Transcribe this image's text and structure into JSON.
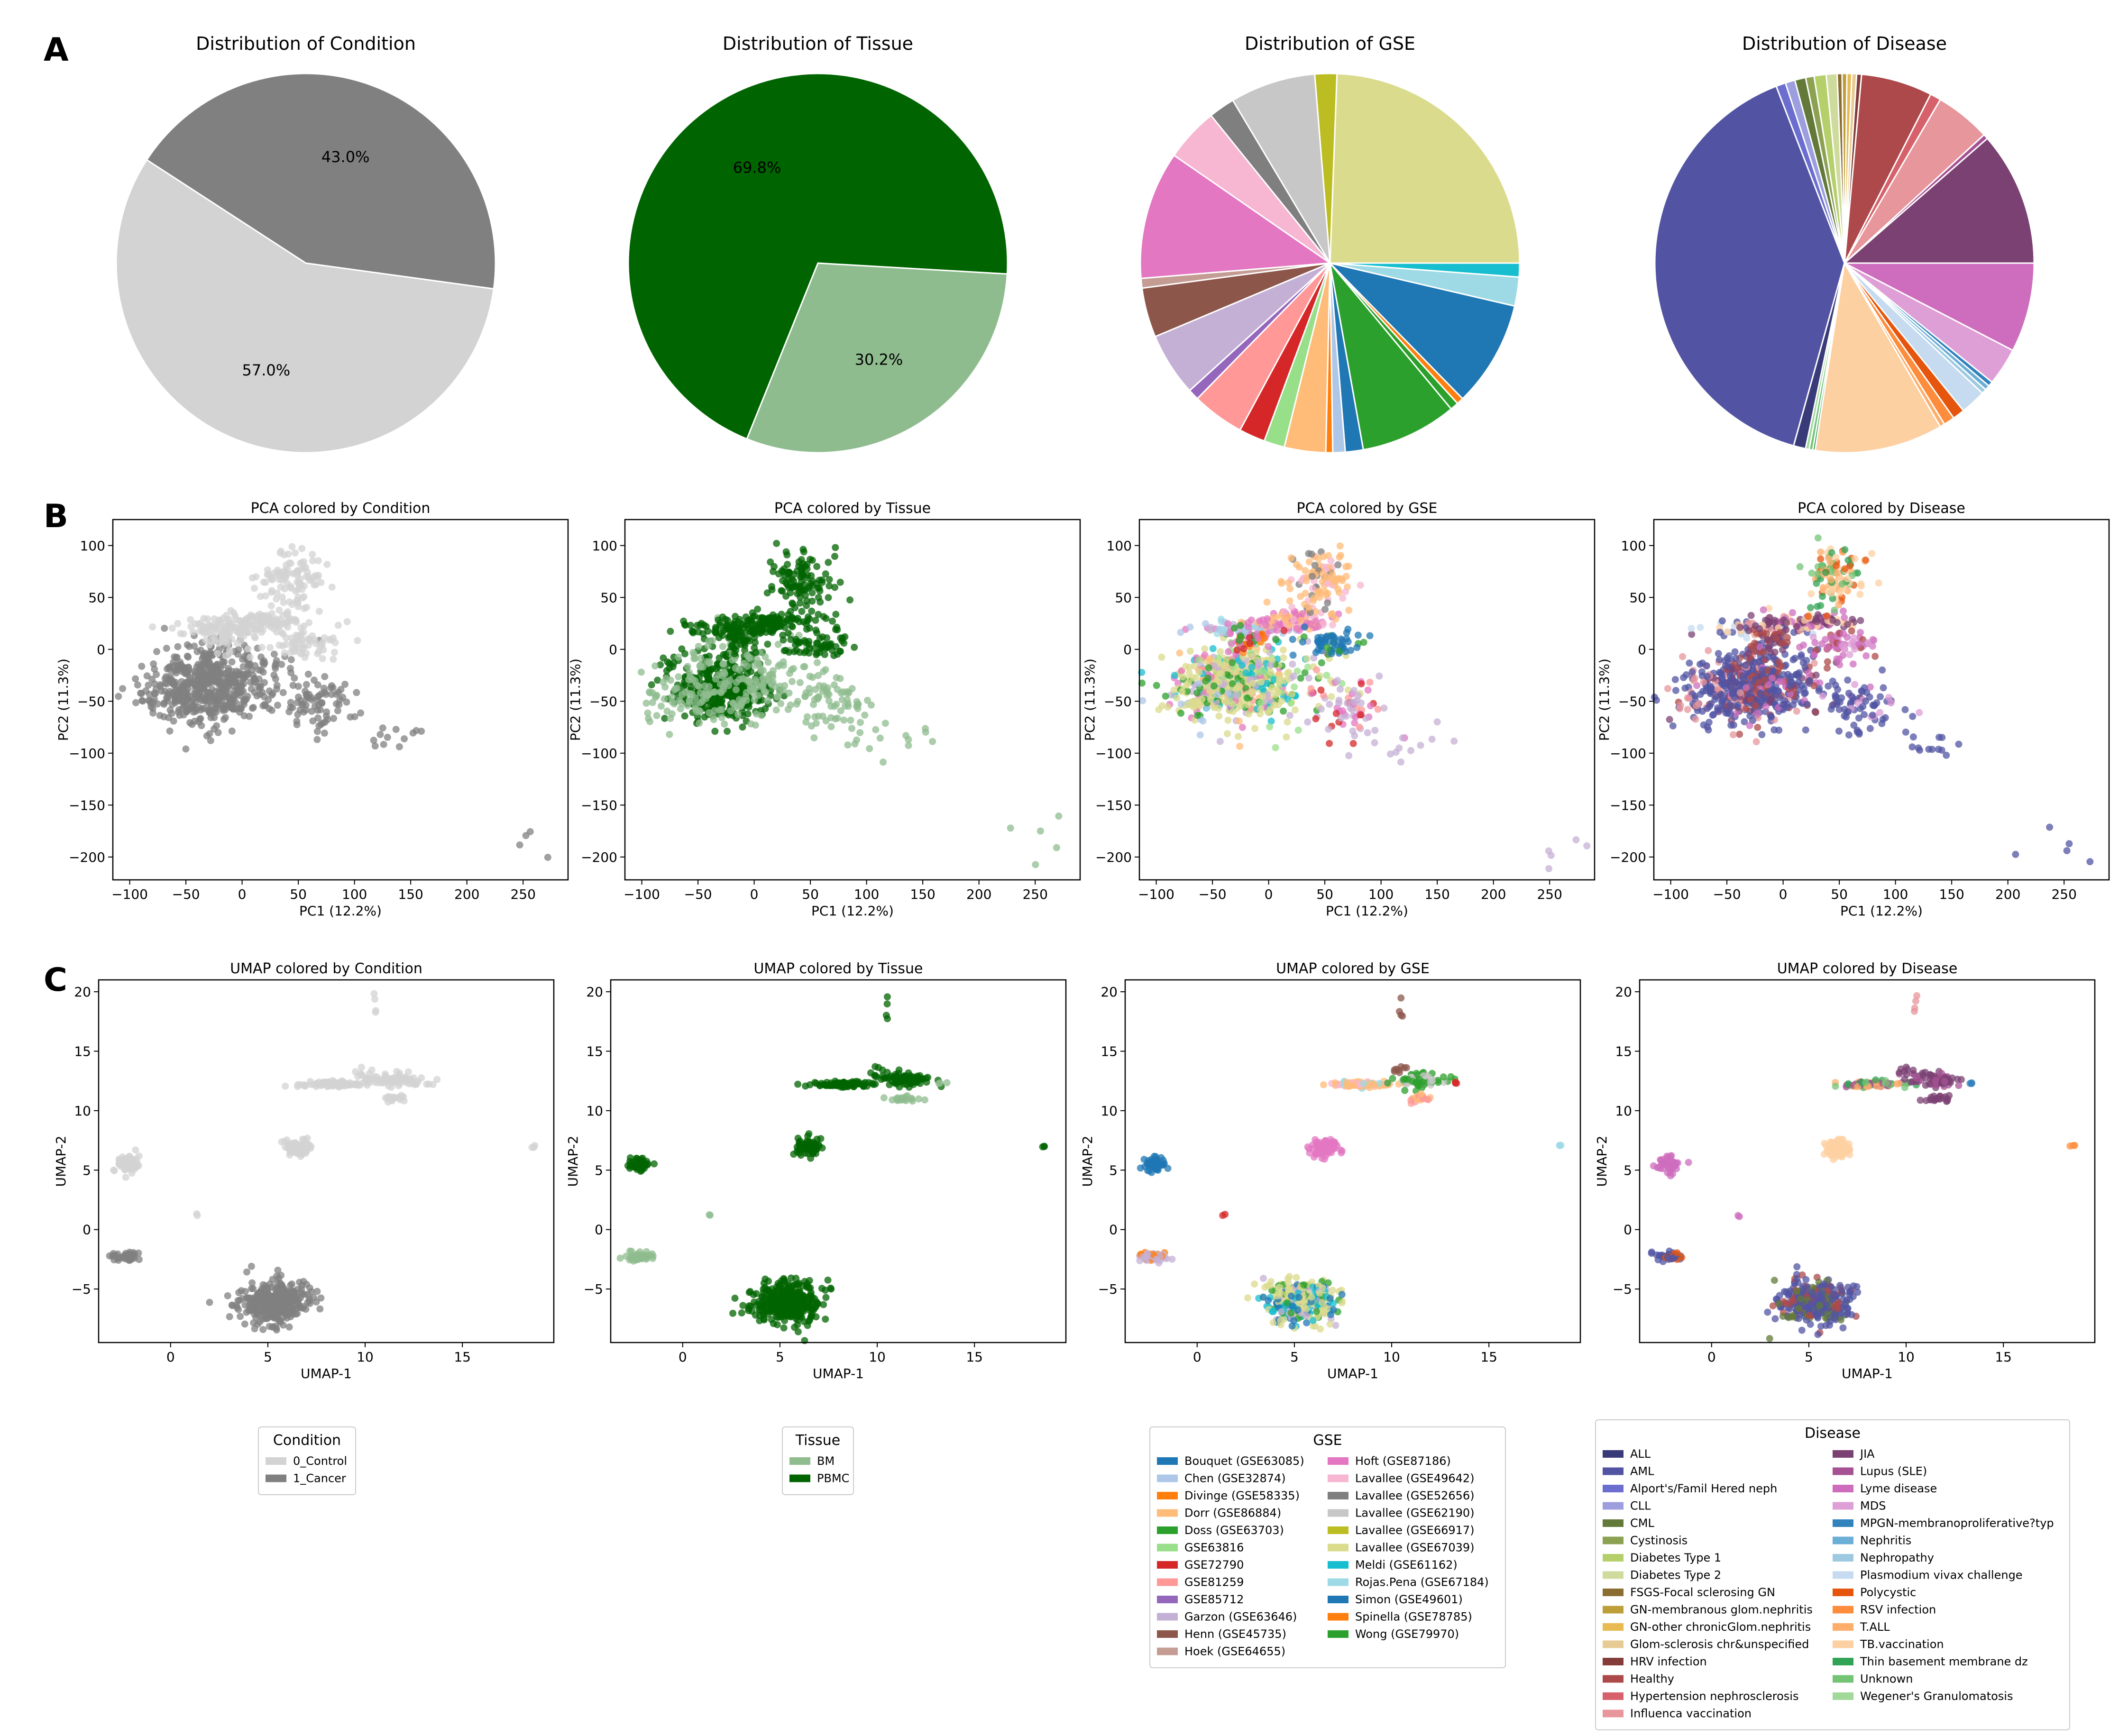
{
  "panel_letters": [
    "A",
    "B",
    "C"
  ],
  "colors": {
    "condition": {
      "0_Control": "#d3d3d3",
      "1_Cancer": "#808080"
    },
    "tissue": {
      "BM": "#8fbc8f",
      "PBMC": "#006400"
    },
    "gse": [
      "#1f77b4",
      "#aec7e8",
      "#ff7f0e",
      "#ffbb78",
      "#2ca02c",
      "#98df8a",
      "#d62728",
      "#ff9896",
      "#9467bd",
      "#c5b0d5",
      "#8c564b",
      "#c49c94",
      "#e377c2",
      "#f7b6d2",
      "#7f7f7f",
      "#c7c7c7",
      "#bcbd22",
      "#dbdb8d",
      "#17becf",
      "#9edae5",
      "#1f77b4",
      "#ff7f0e",
      "#2ca02c"
    ],
    "disease": [
      "#393b79",
      "#5254a3",
      "#6b6ecf",
      "#9c9ede",
      "#637939",
      "#8ca252",
      "#b5cf6b",
      "#cedb9c",
      "#8c6d31",
      "#bd9e39",
      "#e7ba52",
      "#e7cb94",
      "#843c39",
      "#ad494a",
      "#d6616b",
      "#e7969c",
      "#7b4173",
      "#a55194",
      "#ce6dbd",
      "#de9ed6",
      "#3182bd",
      "#6baed6",
      "#9ecae1",
      "#c6dbef",
      "#e6550d",
      "#fd8d3c",
      "#fdae6b",
      "#fdd0a2",
      "#31a354",
      "#74c476",
      "#a1d99b"
    ]
  },
  "chart_data": [
    {
      "id": "pie-condition",
      "type": "pie",
      "title": "Distribution of Condition",
      "labels": [
        "0_Control",
        "1_Cancer"
      ],
      "values": [
        57.0,
        43.0
      ],
      "slice_labels": [
        "57.0%",
        "43.0%"
      ],
      "start_angle_deg": 147
    },
    {
      "id": "pie-tissue",
      "type": "pie",
      "title": "Distribution of Tissue",
      "labels": [
        "BM",
        "PBMC"
      ],
      "values": [
        30.2,
        69.8
      ],
      "slice_labels": [
        "30.2%",
        "69.8%"
      ],
      "start_angle_deg": -112
    },
    {
      "id": "pie-gse",
      "type": "pie",
      "title": "Distribution of GSE",
      "labels": [
        "Bouquet (GSE63085)",
        "Chen (GSE32874)",
        "Divinge (GSE58335)",
        "Dorr (GSE86884)",
        "Doss (GSE63703)",
        "GSE63816",
        "GSE72790",
        "GSE81259",
        "GSE85712",
        "Garzon (GSE63646)",
        "Henn (GSE45735)",
        "Hoek (GSE64655)",
        "Hoft (GSE87186)",
        "Lavallee (GSE49642)",
        "Lavallee (GSE52656)",
        "Lavallee (GSE62190)",
        "Lavallee (GSE66917)",
        "Lavallee (GSE67039)",
        "Meldi (GSE61162)",
        "Rojas.Pena (GSE67184)",
        "Simon (GSE49601)",
        "Spinella (GSE78785)",
        "Wong (GSE79970)"
      ],
      "values": [
        1.3,
        0.9,
        0.5,
        3.0,
        7.0,
        1.5,
        1.9,
        3.8,
        0.8,
        4.6,
        3.6,
        0.7,
        9.3,
        3.9,
        1.9,
        6.2,
        1.6,
        20.8,
        1.0,
        2.1,
        7.7,
        0.5,
        0.6
      ],
      "slice_order": [
        17,
        16,
        15,
        14,
        13,
        12,
        11,
        10,
        9,
        8,
        7,
        6,
        5,
        3,
        2,
        1,
        0,
        4,
        22,
        21,
        20,
        19,
        18
      ],
      "start_angle_deg": 0
    },
    {
      "id": "pie-disease",
      "type": "pie",
      "title": "Distribution of Disease",
      "labels": [
        "ALL",
        "AML",
        "Alport's/Famil Hered neph",
        "CLL",
        "CML",
        "Cystinosis",
        "Diabetes Type 1",
        "Diabetes Type 2",
        "FSGS-Focal sclerosing GN",
        "GN-membranous glom.nephritis",
        "GN-other chronicGlom.nephritis",
        "Glom-sclerosis chr&unspecified",
        "HRV infection",
        "Healthy",
        "Hypertension nephrosclerosis",
        "Influenca vaccination",
        "JIA",
        "Lupus (SLE)",
        "Lyme disease",
        "MDS",
        "MPGN-membranoproliferative?typ",
        "Nephritis",
        "Nephropathy",
        "Plasmodium vivax challenge",
        "Polycystic",
        "RSV infection",
        "T.ALL",
        "TB.vaccination",
        "Thin basement membrane dz",
        "Unknown",
        "Wegener's Granulomatosis"
      ],
      "values": [
        1.0,
        38.7,
        0.8,
        0.8,
        0.9,
        0.7,
        1.0,
        0.9,
        0.4,
        0.4,
        0.4,
        0.4,
        0.4,
        5.9,
        0.9,
        4.6,
        11.1,
        0.4,
        7.4,
        3.1,
        0.4,
        0.4,
        0.4,
        2.1,
        1.0,
        0.9,
        0.4,
        10.6,
        0.2,
        0.3,
        0.3
      ],
      "slice_order": [
        16,
        17,
        15,
        14,
        13,
        12,
        11,
        10,
        9,
        8,
        7,
        6,
        5,
        4,
        3,
        2,
        1,
        0,
        30,
        29,
        28,
        27,
        26,
        25,
        24,
        23,
        22,
        21,
        20,
        19,
        18
      ],
      "start_angle_deg": 0
    },
    {
      "id": "pca-condition",
      "type": "scatter",
      "title": "PCA colored by Condition",
      "xlabel": "PC1 (12.2%)",
      "ylabel": "PC2 (11.3%)",
      "xlim": [
        -115,
        290
      ],
      "ylim": [
        -222,
        125
      ],
      "xticks": [
        -100,
        -50,
        0,
        50,
        100,
        150,
        200,
        250
      ],
      "yticks": [
        -200,
        -150,
        -100,
        -50,
        0,
        50,
        100
      ],
      "scheme": "condition"
    },
    {
      "id": "pca-tissue",
      "type": "scatter",
      "title": "PCA colored by Tissue",
      "xlabel": "PC1 (12.2%)",
      "ylabel": "PC2 (11.3%)",
      "xlim": [
        -115,
        290
      ],
      "ylim": [
        -222,
        125
      ],
      "xticks": [
        -100,
        -50,
        0,
        50,
        100,
        150,
        200,
        250
      ],
      "yticks": [
        -200,
        -150,
        -100,
        -50,
        0,
        50,
        100
      ],
      "scheme": "tissue"
    },
    {
      "id": "pca-gse",
      "type": "scatter",
      "title": "PCA colored by GSE",
      "xlabel": "PC1 (12.2%)",
      "ylabel": "PC2 (11.3%)",
      "xlim": [
        -115,
        290
      ],
      "ylim": [
        -222,
        125
      ],
      "xticks": [
        -100,
        -50,
        0,
        50,
        100,
        150,
        200,
        250
      ],
      "yticks": [
        -200,
        -150,
        -100,
        -50,
        0,
        50,
        100
      ],
      "scheme": "gse"
    },
    {
      "id": "pca-disease",
      "type": "scatter",
      "title": "PCA colored by Disease",
      "xlabel": "PC1 (12.2%)",
      "ylabel": "PC2 (11.3%)",
      "xlim": [
        -115,
        290
      ],
      "ylim": [
        -222,
        125
      ],
      "xticks": [
        -100,
        -50,
        0,
        50,
        100,
        150,
        200,
        250
      ],
      "yticks": [
        -200,
        -150,
        -100,
        -50,
        0,
        50,
        100
      ],
      "scheme": "disease"
    },
    {
      "id": "umap-condition",
      "type": "scatter",
      "title": "UMAP colored by Condition",
      "xlabel": "UMAP-1",
      "ylabel": "UMAP-2",
      "xlim": [
        -3.7,
        19.7
      ],
      "ylim": [
        -9.5,
        21
      ],
      "xticks": [
        0,
        5,
        10,
        15
      ],
      "yticks": [
        -5,
        0,
        5,
        10,
        15,
        20
      ],
      "scheme": "condition"
    },
    {
      "id": "umap-tissue",
      "type": "scatter",
      "title": "UMAP colored by Tissue",
      "xlabel": "UMAP-1",
      "ylabel": "UMAP-2",
      "xlim": [
        -3.7,
        19.7
      ],
      "ylim": [
        -9.5,
        21
      ],
      "xticks": [
        0,
        5,
        10,
        15
      ],
      "yticks": [
        -5,
        0,
        5,
        10,
        15,
        20
      ],
      "scheme": "tissue"
    },
    {
      "id": "umap-gse",
      "type": "scatter",
      "title": "UMAP colored by GSE",
      "xlabel": "UMAP-1",
      "ylabel": "UMAP-2",
      "xlim": [
        -3.7,
        19.7
      ],
      "ylim": [
        -9.5,
        21
      ],
      "xticks": [
        0,
        5,
        10,
        15
      ],
      "yticks": [
        -5,
        0,
        5,
        10,
        15,
        20
      ],
      "scheme": "gse"
    },
    {
      "id": "umap-disease",
      "type": "scatter",
      "title": "UMAP colored by Disease",
      "xlabel": "UMAP-1",
      "ylabel": "UMAP-2",
      "xlim": [
        -3.7,
        19.7
      ],
      "ylim": [
        -9.5,
        21
      ],
      "xticks": [
        0,
        5,
        10,
        15
      ],
      "yticks": [
        -5,
        0,
        5,
        10,
        15,
        20
      ],
      "scheme": "disease"
    }
  ],
  "clusters": {
    "pca": [
      {
        "cx": -30,
        "cy": -35,
        "sx": 22,
        "sy": 18,
        "n": 360,
        "cond": 1,
        "tis": 1,
        "gse": [
          17,
          17,
          17,
          17,
          4,
          3,
          18,
          9,
          7,
          12
        ],
        "dis": [
          1,
          1,
          1,
          1,
          1,
          16,
          13,
          15
        ]
      },
      {
        "cx": -5,
        "cy": -30,
        "sx": 30,
        "sy": 20,
        "n": 160,
        "cond": 1,
        "tis": 0,
        "gse": [
          17,
          17,
          17,
          9,
          4,
          18,
          5
        ],
        "dis": [
          1,
          1,
          1,
          13,
          18
        ]
      },
      {
        "cx": -65,
        "cy": -45,
        "sx": 20,
        "sy": 14,
        "n": 70,
        "cond": 1,
        "tis": 0,
        "gse": [
          17,
          17,
          4,
          1
        ],
        "dis": [
          1,
          1,
          15
        ]
      },
      {
        "cx": -20,
        "cy": 20,
        "sx": 24,
        "sy": 4,
        "n": 70,
        "cond": 0,
        "tis": 1,
        "gse": [
          1,
          12,
          12,
          9,
          19
        ],
        "dis": [
          1,
          27,
          15,
          23
        ]
      },
      {
        "cx": 20,
        "cy": 27,
        "sx": 22,
        "sy": 5,
        "n": 90,
        "cond": 0,
        "tis": 1,
        "gse": [
          12,
          12,
          13,
          3
        ],
        "dis": [
          16,
          16,
          18,
          27
        ]
      },
      {
        "cx": 45,
        "cy": 68,
        "sx": 14,
        "sy": 15,
        "n": 110,
        "cond": 0,
        "tis": 1,
        "gse": [
          3,
          3,
          3,
          13,
          14
        ],
        "dis": [
          26,
          27,
          27,
          24,
          28,
          29
        ]
      },
      {
        "cx": 55,
        "cy": 5,
        "sx": 14,
        "sy": 6,
        "n": 60,
        "cond": 0,
        "tis": 1,
        "gse": [
          0,
          0,
          0,
          20,
          4
        ],
        "dis": [
          18,
          18,
          19,
          13
        ]
      },
      {
        "cx": 70,
        "cy": -55,
        "sx": 18,
        "sy": 14,
        "n": 70,
        "cond": 1,
        "tis": 0,
        "gse": [
          9,
          9,
          6,
          7,
          12
        ],
        "dis": [
          1,
          1,
          1,
          19
        ]
      },
      {
        "cx": -15,
        "cy": 10,
        "sx": 12,
        "sy": 8,
        "n": 40,
        "cond": 0,
        "tis": 1,
        "gse": [
          2,
          6,
          4,
          12
        ],
        "dis": [
          16,
          13
        ]
      },
      {
        "cx": 125,
        "cy": -90,
        "sx": 18,
        "sy": 8,
        "n": 12,
        "cond": 1,
        "tis": 0,
        "gse": [
          9
        ],
        "dis": [
          1
        ]
      },
      {
        "cx": 250,
        "cy": -185,
        "sx": 20,
        "sy": 15,
        "n": 5,
        "cond": 1,
        "tis": 0,
        "gse": [
          9
        ],
        "dis": [
          1
        ]
      }
    ],
    "umap": [
      {
        "cx": 5.3,
        "cy": -6.1,
        "sx": 0.9,
        "sy": 0.9,
        "n": 340,
        "cond": 1,
        "tis": 1,
        "gse": [
          17,
          17,
          17,
          17,
          4,
          18,
          0,
          9
        ],
        "dis": [
          1,
          1,
          1,
          1,
          4,
          13
        ]
      },
      {
        "cx": -2.2,
        "cy": -2.3,
        "sx": 0.35,
        "sy": 0.18,
        "n": 45,
        "cond": 1,
        "tis": 0,
        "gse": [
          9,
          9,
          2
        ],
        "dis": [
          1,
          1,
          24
        ]
      },
      {
        "cx": -2.2,
        "cy": 5.5,
        "sx": 0.3,
        "sy": 0.35,
        "n": 50,
        "cond": 0,
        "tis": 1,
        "gse": [
          0
        ],
        "dis": [
          18
        ]
      },
      {
        "cx": 6.5,
        "cy": 6.9,
        "sx": 0.35,
        "sy": 0.4,
        "n": 70,
        "cond": 0,
        "tis": 1,
        "gse": [
          12
        ],
        "dis": [
          27
        ]
      },
      {
        "cx": 8.3,
        "cy": 12.2,
        "sx": 0.8,
        "sy": 0.12,
        "n": 90,
        "cond": 0,
        "tis": 1,
        "gse": [
          3,
          3,
          3,
          13,
          19
        ],
        "dis": [
          29,
          28,
          17,
          26
        ]
      },
      {
        "cx": 11.5,
        "cy": 12.6,
        "sx": 0.7,
        "sy": 0.3,
        "n": 70,
        "cond": 0,
        "tis": 1,
        "gse": [
          4,
          4,
          15
        ],
        "dis": [
          16,
          16,
          17
        ]
      },
      {
        "cx": 11.5,
        "cy": 11.0,
        "sx": 0.5,
        "sy": 0.15,
        "n": 20,
        "cond": 0,
        "tis": 0,
        "gse": [
          7,
          3
        ],
        "dis": [
          16
        ]
      },
      {
        "cx": 10.5,
        "cy": 18.5,
        "sx": 0.05,
        "sy": 0.9,
        "n": 4,
        "cond": 0,
        "tis": 1,
        "gse": [
          10
        ],
        "dis": [
          15
        ]
      },
      {
        "cx": 10.0,
        "cy": 13.2,
        "sx": 0.4,
        "sy": 0.3,
        "n": 8,
        "cond": 0,
        "tis": 1,
        "gse": [
          10
        ],
        "dis": [
          16
        ]
      },
      {
        "cx": 1.4,
        "cy": 1.2,
        "sx": 0.05,
        "sy": 0.05,
        "n": 2,
        "cond": 0,
        "tis": 0,
        "gse": [
          6
        ],
        "dis": [
          18
        ]
      },
      {
        "cx": 18.6,
        "cy": 7.0,
        "sx": 0.06,
        "sy": 0.06,
        "n": 3,
        "cond": 0,
        "tis": 1,
        "gse": [
          19
        ],
        "dis": [
          25
        ]
      },
      {
        "cx": 13.3,
        "cy": 12.3,
        "sx": 0.1,
        "sy": 0.05,
        "n": 3,
        "cond": 0,
        "tis": 0,
        "gse": [
          6
        ],
        "dis": [
          20
        ]
      }
    ]
  },
  "legends": {
    "condition": {
      "title": "Condition",
      "items": [
        "0_Control",
        "1_Cancer"
      ]
    },
    "tissue": {
      "title": "Tissue",
      "items": [
        "BM",
        "PBMC"
      ]
    },
    "gse": {
      "title": "GSE",
      "col1": [
        "Bouquet (GSE63085)",
        "Chen (GSE32874)",
        "Divinge (GSE58335)",
        "Dorr (GSE86884)",
        "Doss (GSE63703)",
        "GSE63816",
        "GSE72790",
        "GSE81259",
        "GSE85712",
        "Garzon (GSE63646)",
        "Henn (GSE45735)",
        "Hoek (GSE64655)"
      ],
      "col2": [
        "Hoft (GSE87186)",
        "Lavallee (GSE49642)",
        "Lavallee (GSE52656)",
        "Lavallee (GSE62190)",
        "Lavallee (GSE66917)",
        "Lavallee (GSE67039)",
        "Meldi (GSE61162)",
        "Rojas.Pena (GSE67184)",
        "Simon (GSE49601)",
        "Spinella (GSE78785)",
        "Wong (GSE79970)"
      ]
    },
    "disease": {
      "title": "Disease",
      "col1": [
        "ALL",
        "AML",
        "Alport's/Famil Hered neph",
        "CLL",
        "CML",
        "Cystinosis",
        "Diabetes Type 1",
        "Diabetes Type 2",
        "FSGS-Focal sclerosing GN",
        "GN-membranous glom.nephritis",
        "GN-other chronicGlom.nephritis",
        "Glom-sclerosis chr&unspecified",
        "HRV infection",
        "Healthy",
        "Hypertension nephrosclerosis",
        "Influenca vaccination"
      ],
      "col2": [
        "JIA",
        "Lupus (SLE)",
        "Lyme disease",
        "MDS",
        "MPGN-membranoproliferative?typ",
        "Nephritis",
        "Nephropathy",
        "Plasmodium vivax challenge",
        "Polycystic",
        "RSV infection",
        "T.ALL",
        "TB.vaccination",
        "Thin basement membrane dz",
        "Unknown",
        "Wegener's Granulomatosis"
      ]
    }
  }
}
